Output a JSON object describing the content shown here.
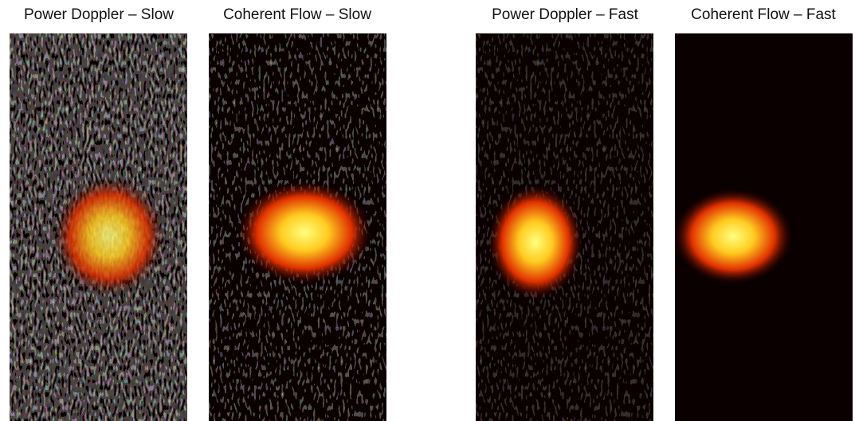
{
  "panels": [
    {
      "title": "Power Doppler – Slow"
    },
    {
      "title": "Coherent Flow – Slow"
    },
    {
      "title": "Power Doppler – Fast"
    },
    {
      "title": "Coherent Flow – Fast"
    }
  ]
}
